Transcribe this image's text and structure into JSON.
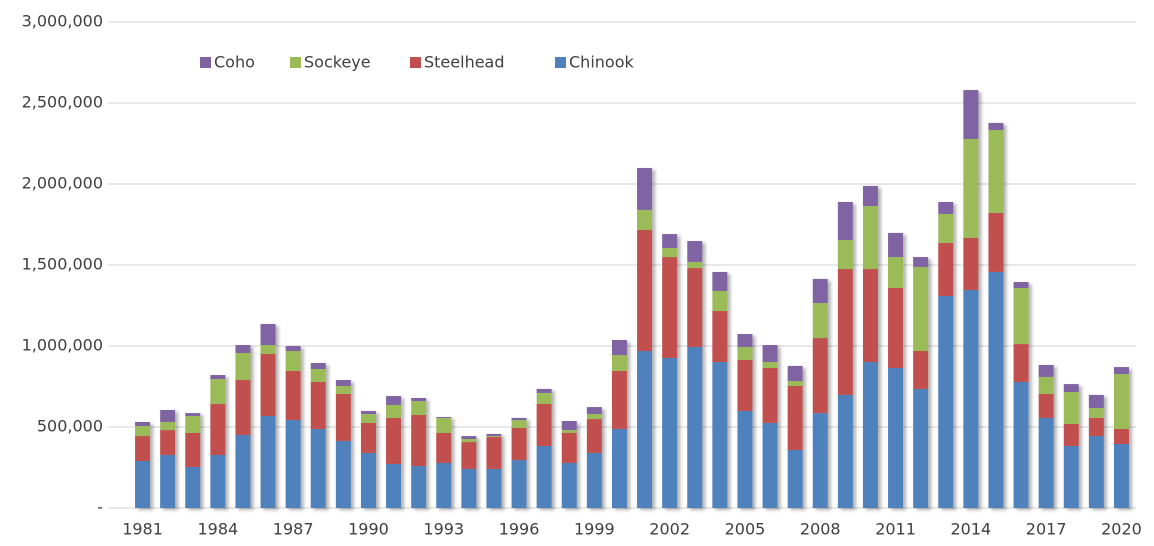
{
  "chart_data": {
    "type": "stacked_bar",
    "categories": [
      "1981",
      null,
      null,
      "1984",
      null,
      null,
      "1987",
      null,
      null,
      "1990",
      null,
      null,
      "1993",
      null,
      null,
      "1996",
      null,
      null,
      "1999",
      null,
      null,
      "2002",
      null,
      null,
      "2005",
      null,
      null,
      "2008",
      null,
      null,
      "2011",
      null,
      null,
      "2014",
      null,
      null,
      "2017",
      null,
      null,
      "2020"
    ],
    "series": [
      {
        "name": "Chinook",
        "color": "#4f81bd",
        "values": [
          290000,
          327000,
          253000,
          327000,
          451000,
          568000,
          543000,
          488000,
          414000,
          340000,
          272000,
          259000,
          278000,
          241000,
          241000,
          296000,
          383000,
          278000,
          340000,
          488000,
          969000,
          926000,
          994000,
          901000,
          599000,
          525000,
          358000,
          586000,
          698000,
          901000,
          864000,
          735000,
          1309000,
          1346000,
          1457000,
          778000,
          556000,
          383000,
          444000,
          395000
        ]
      },
      {
        "name": "Steelhead",
        "color": "#c0504d",
        "values": [
          154000,
          154000,
          210000,
          315000,
          339000,
          383000,
          303000,
          290000,
          290000,
          185000,
          284000,
          315000,
          185000,
          166000,
          197000,
          198000,
          259000,
          185000,
          209000,
          358000,
          747000,
          623000,
          487000,
          315000,
          315000,
          339000,
          395000,
          463000,
          777000,
          574000,
          494000,
          234000,
          327000,
          321000,
          364000,
          234000,
          148000,
          136000,
          112000,
          93000
        ]
      },
      {
        "name": "Sockeye",
        "color": "#9bbb59",
        "values": [
          62000,
          50000,
          105000,
          154000,
          167000,
          55000,
          123000,
          80000,
          49000,
          55000,
          80000,
          86000,
          93000,
          19000,
          6000,
          49000,
          68000,
          18000,
          31000,
          98000,
          124000,
          56000,
          38000,
          124000,
          80000,
          37000,
          31000,
          216000,
          179000,
          389000,
          191000,
          519000,
          179000,
          611000,
          512000,
          346000,
          105000,
          197000,
          61000,
          339000
        ]
      },
      {
        "name": "Coho",
        "color": "#8064a2",
        "values": [
          25000,
          74000,
          18000,
          25000,
          49000,
          130000,
          31000,
          37000,
          37000,
          19000,
          55000,
          19000,
          6000,
          18000,
          13000,
          13000,
          25000,
          56000,
          43000,
          93000,
          259000,
          86000,
          129000,
          117000,
          80000,
          105000,
          93000,
          149000,
          235000,
          124000,
          149000,
          61000,
          74000,
          302000,
          44000,
          37000,
          74000,
          49000,
          81000,
          43000
        ]
      }
    ],
    "ylim": [
      0,
      3000000
    ],
    "yticks": [
      {
        "value": 0,
        "label": "-"
      },
      {
        "value": 500000,
        "label": "500,000"
      },
      {
        "value": 1000000,
        "label": "1,000,000"
      },
      {
        "value": 1500000,
        "label": "1,500,000"
      },
      {
        "value": 2000000,
        "label": "2,000,000"
      },
      {
        "value": 2500000,
        "label": "2,500,000"
      },
      {
        "value": 3000000,
        "label": "3,000,000"
      }
    ],
    "grid": true,
    "legend": "top-left"
  }
}
